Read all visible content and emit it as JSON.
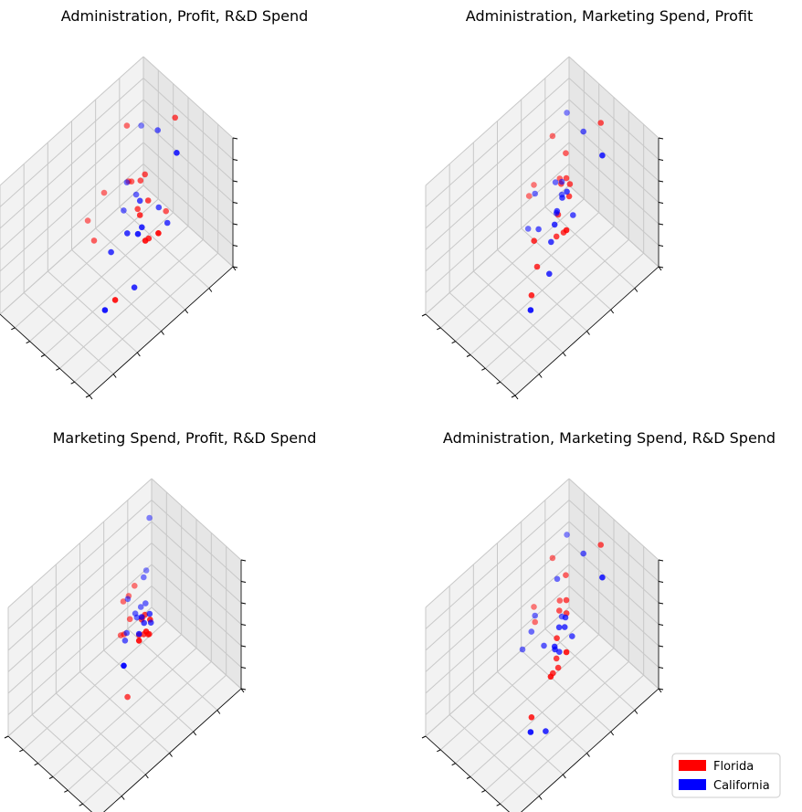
{
  "colors": {
    "Florida": "#ff0000",
    "California": "#0000ff"
  },
  "legend": {
    "placement": "lower-right",
    "entries": [
      {
        "label": "Florida",
        "color": "#ff0000"
      },
      {
        "label": "California",
        "color": "#0000ff"
      }
    ]
  },
  "chart_data": [
    {
      "type": "scatter",
      "title": "Administration, Profit, R&D Spend",
      "axes": [
        "Administration",
        "Profit",
        "R&D Spend"
      ],
      "grid": true,
      "tick_labels_visible": false,
      "series": [
        {
          "name": "Florida",
          "color": "#ff0000",
          "points": [
            [
              0.45,
              0.06,
              0.87
            ],
            [
              0.2,
              0.24,
              0.83
            ],
            [
              0.92,
              0.47,
              0.68
            ],
            [
              0.45,
              0.27,
              0.64
            ],
            [
              0.87,
              0.53,
              0.65
            ],
            [
              0.65,
              0.43,
              0.61
            ],
            [
              0.4,
              0.27,
              0.56
            ],
            [
              0.55,
              0.31,
              0.54
            ],
            [
              0.3,
              0.27,
              0.49
            ],
            [
              0.25,
              0.26,
              0.45
            ],
            [
              0.17,
              0.38,
              0.43
            ],
            [
              0.48,
              0.34,
              0.46
            ],
            [
              0.87,
              0.74,
              0.4
            ],
            [
              0.7,
              0.4,
              0.43
            ],
            [
              0.18,
              0.5,
              0.34
            ],
            [
              0.33,
              0.55,
              0.33
            ],
            [
              0.38,
              0.08,
              0.12
            ]
          ]
        },
        {
          "name": "California",
          "color": "#0000ff",
          "points": [
            [
              0.74,
              0.23,
              0.95
            ],
            [
              0.82,
              0.55,
              0.69
            ],
            [
              0.32,
              0.1,
              0.73
            ],
            [
              0.72,
              0.46,
              0.59
            ],
            [
              0.49,
              0.33,
              0.52
            ],
            [
              0.62,
              0.5,
              0.52
            ],
            [
              0.04,
              0.04,
              0.53
            ],
            [
              0.6,
              0.6,
              0.46
            ],
            [
              0.2,
              0.24,
              0.39
            ],
            [
              0.9,
              0.83,
              0.43
            ],
            [
              0.46,
              0.18,
              0.3
            ],
            [
              0.24,
              0.2,
              0.28
            ],
            [
              0.54,
              0.17,
              0.22
            ],
            [
              0.26,
              0.3,
              0.27
            ],
            [
              0.7,
              0.5,
              0.15
            ]
          ]
        }
      ]
    },
    {
      "type": "scatter",
      "title": "Administration, Marketing Spend, Profit",
      "axes": [
        "Administration",
        "Marketing Spend",
        "Profit"
      ],
      "grid": true,
      "tick_labels_visible": false,
      "series": [
        {
          "name": "Florida",
          "color": "#ff0000",
          "points": [
            [
              0.45,
              0.06,
              0.83
            ],
            [
              0.2,
              0.24,
              0.75
            ],
            [
              0.82,
              0.53,
              0.7
            ],
            [
              0.3,
              0.21,
              0.65
            ],
            [
              0.45,
              0.3,
              0.64
            ],
            [
              0.49,
              0.3,
              0.62
            ],
            [
              0.44,
              0.33,
              0.62
            ],
            [
              0.53,
              0.33,
              0.58
            ],
            [
              0.55,
              0.42,
              0.54
            ],
            [
              0.65,
              0.65,
              0.63
            ],
            [
              0.28,
              0.24,
              0.47
            ],
            [
              0.12,
              0.32,
              0.4
            ],
            [
              0.58,
              0.45,
              0.42
            ],
            [
              0.62,
              0.61,
              0.37
            ],
            [
              0.13,
              0.36,
              0.36
            ],
            [
              0.58,
              0.4,
              0.4
            ],
            [
              0.75,
              0.73,
              0.35
            ]
          ]
        },
        {
          "name": "California",
          "color": "#0000ff",
          "points": [
            [
              0.74,
              0.23,
              0.93
            ],
            [
              0.04,
              0.04,
              0.63
            ],
            [
              0.32,
              0.1,
              0.72
            ],
            [
              0.52,
              0.34,
              0.62
            ],
            [
              0.5,
              0.36,
              0.58
            ],
            [
              0.64,
              0.5,
              0.6
            ],
            [
              0.49,
              0.39,
              0.5
            ],
            [
              0.24,
              0.2,
              0.38
            ],
            [
              0.2,
              0.22,
              0.37
            ],
            [
              0.6,
              0.5,
              0.44
            ],
            [
              0.18,
              0.35,
              0.4
            ],
            [
              0.42,
              0.35,
              0.4
            ],
            [
              0.38,
              0.45,
              0.35
            ],
            [
              0.9,
              0.83,
              0.43
            ],
            [
              0.24,
              0.2,
              0.28
            ],
            [
              0.46,
              0.26,
              0.32
            ],
            [
              0.2,
              0.41,
              0.2
            ],
            [
              0.66,
              0.55,
              0.28
            ]
          ]
        }
      ]
    },
    {
      "type": "scatter",
      "title": "Marketing Spend, Profit, R&D Spend",
      "axes": [
        "Marketing Spend",
        "Profit",
        "R&D Spend"
      ],
      "grid": true,
      "tick_labels_visible": false,
      "series": [
        {
          "name": "Florida",
          "color": "#ff0000",
          "points": [
            [
              0.9,
              0.65,
              0.96
            ],
            [
              0.82,
              0.55,
              0.88
            ],
            [
              0.72,
              0.46,
              0.82
            ],
            [
              0.55,
              0.39,
              0.68
            ],
            [
              0.53,
              0.4,
              0.64
            ],
            [
              0.6,
              0.43,
              0.6
            ],
            [
              0.57,
              0.38,
              0.53
            ],
            [
              0.55,
              0.36,
              0.5
            ],
            [
              0.5,
              0.4,
              0.5
            ],
            [
              0.18,
              0.31,
              0.47
            ],
            [
              0.16,
              0.26,
              0.45
            ],
            [
              0.13,
              0.2,
              0.45
            ],
            [
              0.27,
              0.32,
              0.4
            ],
            [
              0.3,
              0.38,
              0.36
            ],
            [
              0.28,
              0.39,
              0.35
            ],
            [
              0.25,
              0.22,
              0.3
            ],
            [
              0.5,
              0.48,
              0.1
            ]
          ]
        },
        {
          "name": "California",
          "color": "#0000ff",
          "points": [
            [
              0.97,
              0.8,
              0.96
            ],
            [
              0.04,
              0.04,
              0.76
            ],
            [
              0.66,
              0.5,
              0.71
            ],
            [
              0.53,
              0.4,
              0.66
            ],
            [
              0.54,
              0.39,
              0.61
            ],
            [
              0.49,
              0.32,
              0.58
            ],
            [
              0.52,
              0.33,
              0.54
            ],
            [
              0.15,
              0.26,
              0.42
            ],
            [
              0.12,
              0.13,
              0.44
            ],
            [
              0.25,
              0.27,
              0.38
            ],
            [
              0.22,
              0.18,
              0.35
            ],
            [
              0.33,
              0.38,
              0.39
            ],
            [
              0.36,
              0.41,
              0.38
            ],
            [
              0.2,
              0.2,
              0.33
            ],
            [
              0.02,
              0.05,
              0.35
            ],
            [
              0.22,
              0.24,
              0.3
            ]
          ]
        }
      ]
    },
    {
      "type": "scatter",
      "title": "Administration, Marketing Spend, R&D Spend",
      "axes": [
        "Administration",
        "Marketing Spend",
        "R&D Spend"
      ],
      "grid": true,
      "tick_labels_visible": false,
      "series": [
        {
          "name": "Florida",
          "color": "#ff0000",
          "points": [
            [
              0.45,
              0.06,
              0.83
            ],
            [
              0.2,
              0.24,
              0.75
            ],
            [
              0.82,
              0.53,
              0.7
            ],
            [
              0.3,
              0.21,
              0.65
            ],
            [
              0.45,
              0.3,
              0.64
            ],
            [
              0.82,
              0.64,
              0.62
            ],
            [
              0.5,
              0.33,
              0.6
            ],
            [
              0.42,
              0.33,
              0.57
            ],
            [
              0.6,
              0.46,
              0.6
            ],
            [
              0.12,
              0.32,
              0.4
            ],
            [
              0.28,
              0.24,
              0.47
            ],
            [
              0.58,
              0.45,
              0.42
            ],
            [
              0.18,
              0.35,
              0.35
            ],
            [
              0.62,
              0.5,
              0.38
            ],
            [
              0.6,
              0.45,
              0.36
            ],
            [
              0.75,
              0.73,
              0.35
            ]
          ]
        },
        {
          "name": "California",
          "color": "#0000ff",
          "points": [
            [
              0.74,
              0.23,
              0.93
            ],
            [
              0.04,
              0.04,
              0.63
            ],
            [
              0.32,
              0.1,
              0.72
            ],
            [
              0.22,
              0.22,
              0.58
            ],
            [
              0.52,
              0.35,
              0.6
            ],
            [
              0.64,
              0.5,
              0.6
            ],
            [
              0.53,
              0.4,
              0.58
            ],
            [
              0.56,
              0.38,
              0.58
            ],
            [
              0.58,
              0.46,
              0.5
            ],
            [
              0.18,
              0.35,
              0.4
            ],
            [
              0.9,
              0.83,
              0.43
            ],
            [
              0.22,
              0.4,
              0.35
            ],
            [
              0.5,
              0.38,
              0.35
            ],
            [
              0.24,
              0.2,
              0.28
            ],
            [
              0.45,
              0.26,
              0.32
            ],
            [
              0.36,
              0.4,
              0.33
            ],
            [
              0.2,
              0.45,
              0.25
            ],
            [
              0.7,
              0.6,
              0.08
            ]
          ]
        }
      ]
    }
  ]
}
